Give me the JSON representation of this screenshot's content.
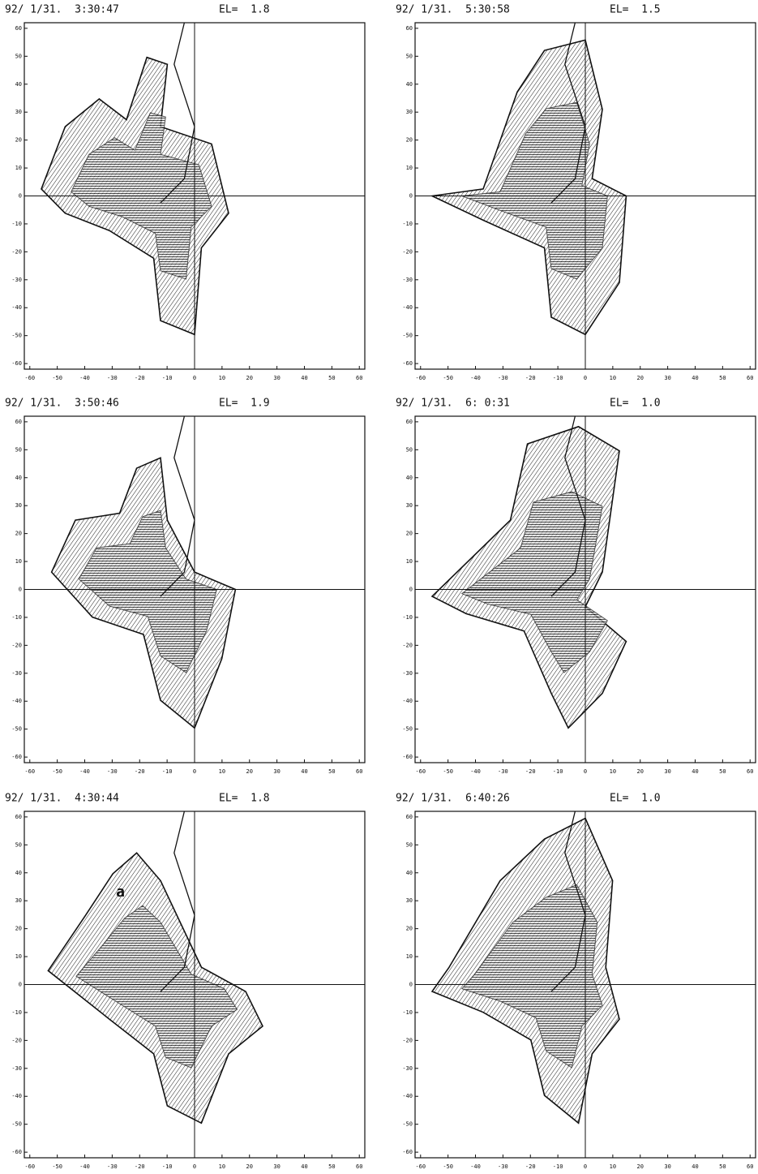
{
  "chart_data": [
    {
      "type": "contour",
      "title": "92/ 1/31.  3:30:47",
      "elevation_label": "EL=  1.8",
      "xlim": [
        -62,
        62
      ],
      "ylim": [
        -62,
        62
      ],
      "xticks": [
        -60,
        -50,
        -40,
        -30,
        -20,
        -10,
        0,
        10,
        20,
        30,
        40,
        50,
        60
      ],
      "yticks": [
        -60,
        -50,
        -40,
        -30,
        -20,
        -10,
        0,
        10,
        20,
        30,
        40,
        50,
        60
      ]
    },
    {
      "type": "contour",
      "title": "92/ 1/31.  5:30:58",
      "elevation_label": "EL=  1.5",
      "xlim": [
        -62,
        62
      ],
      "ylim": [
        -62,
        62
      ],
      "xticks": [
        -60,
        -50,
        -40,
        -30,
        -20,
        -10,
        0,
        10,
        20,
        30,
        40,
        50,
        60
      ],
      "yticks": [
        -60,
        -50,
        -40,
        -30,
        -20,
        -10,
        0,
        10,
        20,
        30,
        40,
        50,
        60
      ]
    },
    {
      "type": "contour",
      "title": "92/ 1/31.  3:50:46",
      "elevation_label": "EL=  1.9",
      "xlim": [
        -62,
        62
      ],
      "ylim": [
        -62,
        62
      ],
      "xticks": [
        -60,
        -50,
        -40,
        -30,
        -20,
        -10,
        0,
        10,
        20,
        30,
        40,
        50,
        60
      ],
      "yticks": [
        -60,
        -50,
        -40,
        -30,
        -20,
        -10,
        0,
        10,
        20,
        30,
        40,
        50,
        60
      ]
    },
    {
      "type": "contour",
      "title": "92/ 1/31.  6: 0:31",
      "elevation_label": "EL=  1.0",
      "xlim": [
        -62,
        62
      ],
      "ylim": [
        -62,
        62
      ],
      "xticks": [
        -60,
        -50,
        -40,
        -30,
        -20,
        -10,
        0,
        10,
        20,
        30,
        40,
        50,
        60
      ],
      "yticks": [
        -60,
        -50,
        -40,
        -30,
        -20,
        -10,
        0,
        10,
        20,
        30,
        40,
        50,
        60
      ]
    },
    {
      "type": "contour",
      "title": "92/ 1/31.  4:30:44",
      "elevation_label": "EL=  1.8",
      "xlim": [
        -62,
        62
      ],
      "ylim": [
        -62,
        62
      ],
      "xticks": [
        -60,
        -50,
        -40,
        -30,
        -20,
        -10,
        0,
        10,
        20,
        30,
        40,
        50,
        60
      ],
      "yticks": [
        -60,
        -50,
        -40,
        -30,
        -20,
        -10,
        0,
        10,
        20,
        30,
        40,
        50,
        60
      ],
      "annotations": [
        {
          "text": "a",
          "x": -27,
          "y": 33
        }
      ]
    },
    {
      "type": "contour",
      "title": "92/ 1/31.  6:40:26",
      "elevation_label": "EL=  1.0",
      "xlim": [
        -62,
        62
      ],
      "ylim": [
        -62,
        62
      ],
      "xticks": [
        -60,
        -50,
        -40,
        -30,
        -20,
        -10,
        0,
        10,
        20,
        30,
        40,
        50,
        60
      ],
      "yticks": [
        -60,
        -50,
        -40,
        -30,
        -20,
        -10,
        0,
        10,
        20,
        30,
        40,
        50,
        60
      ]
    }
  ]
}
